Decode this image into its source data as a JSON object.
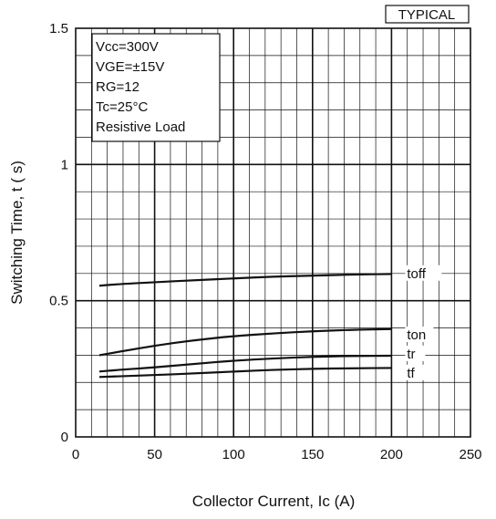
{
  "chart_data": {
    "type": "line",
    "badge": "TYPICAL",
    "xlabel": "Collector Current, Ic (A)",
    "ylabel": "Switching Time, t ( s)",
    "xlim": [
      0,
      250
    ],
    "ylim": [
      0,
      1.5
    ],
    "x_ticks": [
      "0",
      "50",
      "100",
      "150",
      "200",
      "250"
    ],
    "y_ticks": [
      "0",
      "0.5",
      "1",
      "1.5"
    ],
    "grid": true,
    "conditions": [
      "Vcc=300V",
      "VGE=±15V",
      "RG=12",
      "Tc=25°C",
      "Resistive Load"
    ],
    "x": [
      15,
      25,
      50,
      75,
      100,
      125,
      150,
      175,
      200
    ],
    "series": [
      {
        "name": "toff",
        "values": [
          0.555,
          0.56,
          0.568,
          0.575,
          0.582,
          0.588,
          0.592,
          0.596,
          0.598
        ]
      },
      {
        "name": "ton",
        "values": [
          0.3,
          0.31,
          0.335,
          0.355,
          0.37,
          0.38,
          0.388,
          0.393,
          0.396
        ]
      },
      {
        "name": "tr",
        "values": [
          0.24,
          0.245,
          0.255,
          0.268,
          0.28,
          0.288,
          0.294,
          0.297,
          0.298
        ]
      },
      {
        "name": "tf",
        "values": [
          0.22,
          0.222,
          0.227,
          0.233,
          0.24,
          0.246,
          0.25,
          0.252,
          0.253
        ]
      }
    ]
  }
}
